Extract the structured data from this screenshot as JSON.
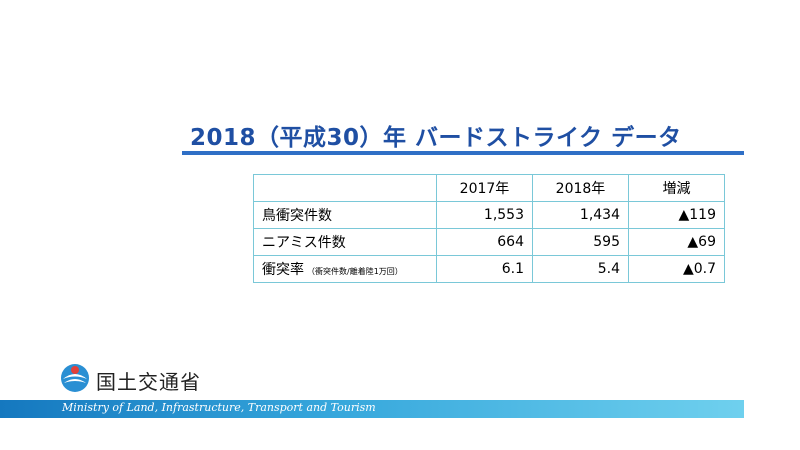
{
  "title": "2018（平成30）年 バードストライク データ",
  "table": {
    "headers": [
      "",
      "2017年",
      "2018年",
      "増減"
    ],
    "rows": [
      {
        "label": "鳥衝突件数",
        "note": "",
        "values": [
          "1,553",
          "1,434",
          "▲119"
        ]
      },
      {
        "label": "ニアミス件数",
        "note": "",
        "values": [
          "664",
          "595",
          "▲69"
        ]
      },
      {
        "label": "衝突率",
        "note": "（衝突件数/離着陸1万回）",
        "values": [
          "6.1",
          "5.4",
          "▲0.7"
        ]
      }
    ]
  },
  "footer": {
    "org_name_jp": "国土交通省",
    "org_name_en": "Ministry of Land, Infrastructure, Transport and Tourism",
    "emblem_icon": "mlit-emblem-icon"
  },
  "colors": {
    "title": "#1f4fa3",
    "rule": "#2f6fc6",
    "table_border": "#7ac8d8",
    "band_start": "#1578bf",
    "band_end": "#6fd0ee"
  }
}
